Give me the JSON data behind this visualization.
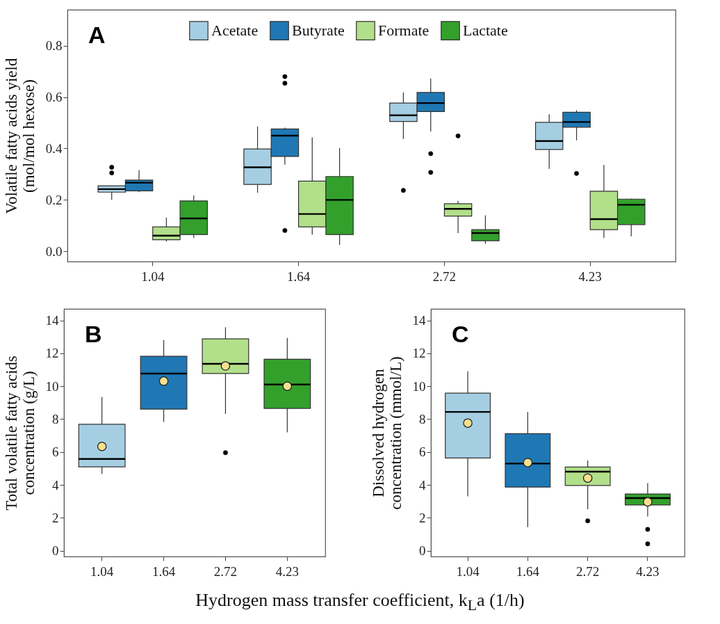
{
  "chart_data": [
    {
      "type": "box",
      "title": "A",
      "ylabel": "Volatile fatty acids yield\n(mol/mol hexose)",
      "categories": [
        "1.04",
        "1.64",
        "2.72",
        "4.23"
      ],
      "ylim": [
        -0.04,
        0.94
      ],
      "yticks": [
        {
          "value": 0,
          "label": "0.0"
        },
        0.2,
        0.4,
        0.6,
        0.8
      ],
      "legend": "top",
      "series": [
        {
          "name": "Acetate",
          "color": "#a6cee3",
          "boxes": [
            {
              "low": 0.2,
              "q1": 0.23,
              "median": 0.242,
              "q3": 0.255,
              "high": 0.255,
              "outliers": [
                0.327,
                0.305
              ]
            },
            {
              "low": 0.228,
              "q1": 0.26,
              "median": 0.327,
              "q3": 0.398,
              "high": 0.486
            },
            {
              "low": 0.437,
              "q1": 0.505,
              "median": 0.529,
              "q3": 0.577,
              "high": 0.618,
              "outliers": [
                0.237
              ]
            },
            {
              "low": 0.321,
              "q1": 0.396,
              "median": 0.429,
              "q3": 0.502,
              "high": 0.533
            }
          ]
        },
        {
          "name": "Butyrate",
          "color": "#1f78b4",
          "boxes": [
            {
              "low": 0.23,
              "q1": 0.235,
              "median": 0.267,
              "q3": 0.277,
              "high": 0.316
            },
            {
              "low": 0.337,
              "q1": 0.369,
              "median": 0.45,
              "q3": 0.476,
              "high": 0.481,
              "outliers": [
                0.68,
                0.654,
                0.081
              ]
            },
            {
              "low": 0.466,
              "q1": 0.544,
              "median": 0.577,
              "q3": 0.618,
              "high": 0.672,
              "outliers": [
                0.38,
                0.307
              ]
            },
            {
              "low": 0.432,
              "q1": 0.483,
              "median": 0.503,
              "q3": 0.541,
              "high": 0.549,
              "outliers": [
                0.303
              ]
            }
          ]
        },
        {
          "name": "Formate",
          "color": "#b2df8a",
          "boxes": [
            {
              "low": 0.038,
              "q1": 0.045,
              "median": 0.061,
              "q3": 0.095,
              "high": 0.131
            },
            {
              "low": 0.065,
              "q1": 0.095,
              "median": 0.145,
              "q3": 0.273,
              "high": 0.443
            },
            {
              "low": 0.071,
              "q1": 0.137,
              "median": 0.165,
              "q3": 0.185,
              "high": 0.196,
              "outliers": [
                0.449
              ]
            },
            {
              "low": 0.052,
              "q1": 0.084,
              "median": 0.125,
              "q3": 0.234,
              "high": 0.336
            }
          ]
        },
        {
          "name": "Lactate",
          "color": "#33a02c",
          "boxes": [
            {
              "low": 0.052,
              "q1": 0.065,
              "median": 0.128,
              "q3": 0.196,
              "high": 0.217
            },
            {
              "low": 0.025,
              "q1": 0.065,
              "median": 0.2,
              "q3": 0.291,
              "high": 0.402
            },
            {
              "low": 0.029,
              "q1": 0.041,
              "median": 0.071,
              "q3": 0.084,
              "high": 0.14
            },
            {
              "low": 0.058,
              "q1": 0.104,
              "median": 0.181,
              "q3": 0.203,
              "high": 0.205
            }
          ]
        }
      ]
    },
    {
      "type": "box",
      "title": "B",
      "ylabel": "Total volatile fatty acids\nconcentration (g/L)",
      "xlabel": "Hydrogen mass transfer coefficient, k$_{L}$a  (1/h)",
      "categories": [
        "1.04",
        "1.64",
        "2.72",
        "4.23"
      ],
      "ylim": [
        -0.35,
        14.7
      ],
      "yticks": [
        0,
        2,
        4,
        6,
        8,
        10,
        12,
        14
      ],
      "colors": [
        "#a6cee3",
        "#1f78b4",
        "#b2df8a",
        "#33a02c"
      ],
      "boxes": [
        {
          "low": 4.67,
          "q1": 5.1,
          "median": 5.58,
          "q3": 7.69,
          "high": 9.34,
          "mean": 6.34
        },
        {
          "low": 7.83,
          "q1": 8.61,
          "median": 10.77,
          "q3": 11.82,
          "high": 12.8,
          "mean": 10.31
        },
        {
          "low": 8.32,
          "q1": 10.77,
          "median": 11.36,
          "q3": 12.88,
          "high": 13.58,
          "mean": 11.23,
          "outliers": [
            5.96
          ]
        },
        {
          "low": 7.2,
          "q1": 8.65,
          "median": 10.1,
          "q3": 11.64,
          "high": 12.93,
          "mean": 10.0
        }
      ]
    },
    {
      "type": "box",
      "title": "C",
      "ylabel": "Dissolved hydrogen\nconcentration (mmol/L)",
      "categories": [
        "1.04",
        "1.64",
        "2.72",
        "4.23"
      ],
      "ylim": [
        -0.35,
        14.7
      ],
      "yticks": [
        0,
        2,
        4,
        6,
        8,
        10,
        12,
        14
      ],
      "colors": [
        "#a6cee3",
        "#1f78b4",
        "#b2df8a",
        "#33a02c"
      ],
      "boxes": [
        {
          "low": 3.31,
          "q1": 5.64,
          "median": 8.44,
          "q3": 9.58,
          "high": 10.91,
          "mean": 7.76
        },
        {
          "low": 1.44,
          "q1": 3.87,
          "median": 5.3,
          "q3": 7.12,
          "high": 8.43,
          "mean": 5.36
        },
        {
          "low": 2.52,
          "q1": 3.97,
          "median": 4.81,
          "q3": 5.09,
          "high": 5.48,
          "mean": 4.42,
          "outliers": [
            1.82
          ]
        },
        {
          "low": 2.08,
          "q1": 2.78,
          "median": 3.2,
          "q3": 3.45,
          "high": 4.11,
          "mean": 2.97,
          "outliers": [
            1.3,
            0.42
          ]
        }
      ]
    }
  ]
}
